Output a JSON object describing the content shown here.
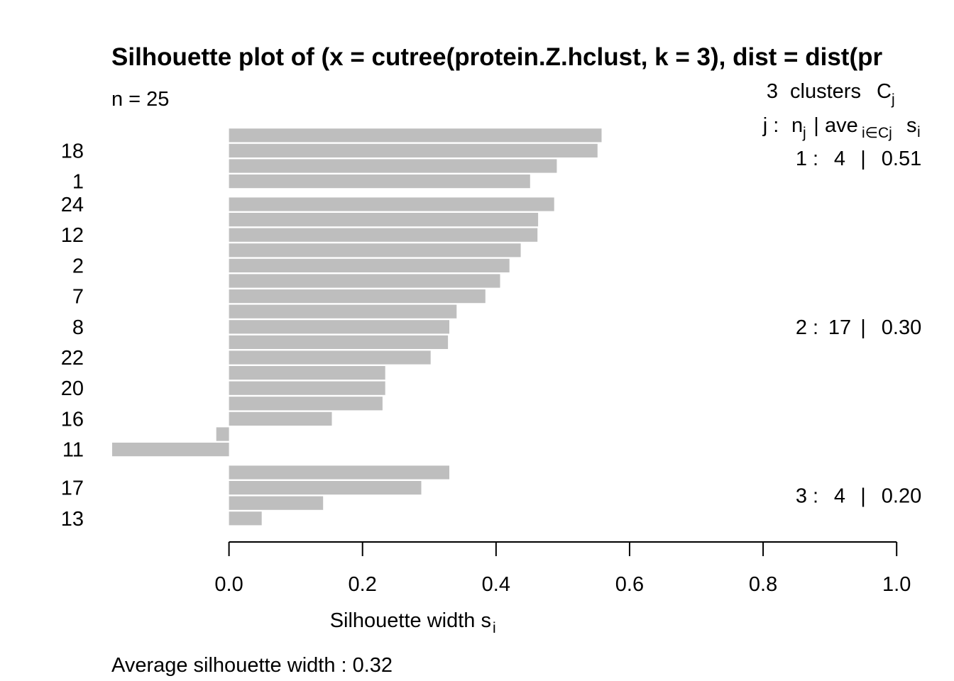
{
  "chart_data": {
    "type": "bar",
    "orientation": "horizontal",
    "title": "Silhouette plot of (x = cutree(protein.Z.hclust, k = 3), dist = dist(pr",
    "subtitle": "n = 25",
    "xlabel_main": "Silhouette width s",
    "xlabel_sub": "i",
    "xlim": [
      -0.175,
      1.0
    ],
    "xticks": [
      0.0,
      0.2,
      0.4,
      0.6,
      0.8,
      1.0
    ],
    "xtick_labels": [
      "0.0",
      "0.2",
      "0.4",
      "0.6",
      "0.8",
      "1.0"
    ],
    "bar_color": "#bebebe",
    "grid": false,
    "footer": "Average silhouette width :  0.32",
    "legend_header": {
      "count": "3",
      "word": "clusters",
      "symbol": "C",
      "symbol_sub": "j",
      "j": "j :",
      "n": "n",
      "n_sub": "j",
      "sep": "|",
      "ave": "ave",
      "ave_sub": "i∈Cj",
      "s": "s",
      "s_sub": "i"
    },
    "clusters": [
      {
        "id": "1 :",
        "n": "4",
        "sep": "|",
        "avg": "0.51",
        "values": [
          0.558,
          0.552,
          0.491,
          0.451
        ]
      },
      {
        "id": "2 :",
        "n": "17",
        "sep": "|",
        "avg": "0.30",
        "values": [
          0.487,
          0.463,
          0.462,
          0.437,
          0.42,
          0.406,
          0.384,
          0.341,
          0.33,
          0.328,
          0.302,
          0.234,
          0.234,
          0.23,
          0.154,
          -0.019,
          -0.175
        ]
      },
      {
        "id": "3 :",
        "n": "4",
        "sep": "|",
        "avg": "0.20",
        "values": [
          0.33,
          0.288,
          0.141,
          0.049
        ]
      }
    ],
    "row_labels": [
      {
        "row": 2,
        "label": "18"
      },
      {
        "row": 4,
        "label": "1"
      },
      {
        "row": 5,
        "label": "24"
      },
      {
        "row": 7,
        "label": "12"
      },
      {
        "row": 9,
        "label": "2"
      },
      {
        "row": 11,
        "label": "7"
      },
      {
        "row": 13,
        "label": "8"
      },
      {
        "row": 15,
        "label": "22"
      },
      {
        "row": 17,
        "label": "20"
      },
      {
        "row": 19,
        "label": "16"
      },
      {
        "row": 21,
        "label": "11"
      },
      {
        "row": 23,
        "label": "17"
      },
      {
        "row": 25,
        "label": "13"
      }
    ]
  }
}
